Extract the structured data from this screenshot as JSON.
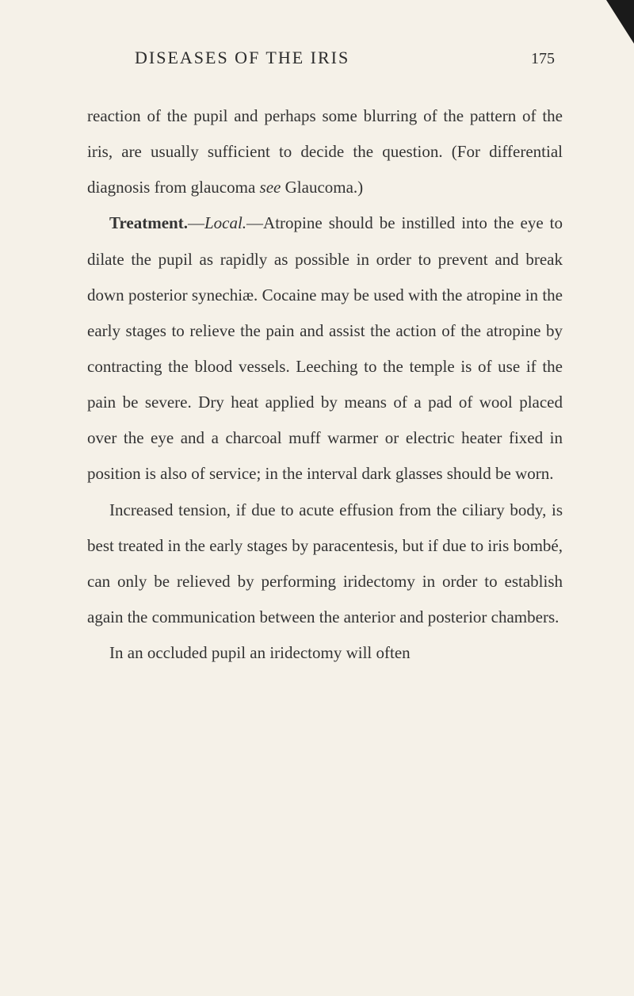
{
  "header": {
    "title": "DISEASES OF THE IRIS",
    "pageNumber": "175"
  },
  "paragraphs": {
    "p1": "reaction of the pupil and perhaps some blurring of the pattern of the iris, are usually sufficient to decide the question. (For differential diagnosis from glaucoma ",
    "p1_italic": "see",
    "p1_end": " Glaucoma.)",
    "p2_bold": "Treatment.",
    "p2_dash": "—",
    "p2_italic": "Local.",
    "p2_text": "—Atropine should be instilled into the eye to dilate the pupil as rapidly as possible in order to prevent and break down posterior synechiæ. Cocaine may be used with the atropine in the early stages to relieve the pain and assist the action of the atropine by contracting the blood vessels. Leeching to the temple is of use if the pain be severe. Dry heat applied by means of a pad of wool placed over the eye and a charcoal muff warmer or electric heater fixed in position is also of service; in the interval dark glasses should be worn.",
    "p3": "Increased tension, if due to acute effusion from the ciliary body, is best treated in the early stages by paracentesis, but if due to iris bombé, can only be relieved by performing iridectomy in order to establish again the communication between the anterior and posterior chambers.",
    "p4": "In an occluded pupil an iridectomy will often"
  },
  "styling": {
    "backgroundColor": "#f5f1e8",
    "textColor": "#2a2a2a",
    "fontFamily": "Georgia, Times New Roman, serif",
    "bodyFontSize": 21,
    "headerFontSize": 22,
    "lineHeight": 2.15,
    "pageWidth": 800,
    "pageHeight": 1256
  }
}
